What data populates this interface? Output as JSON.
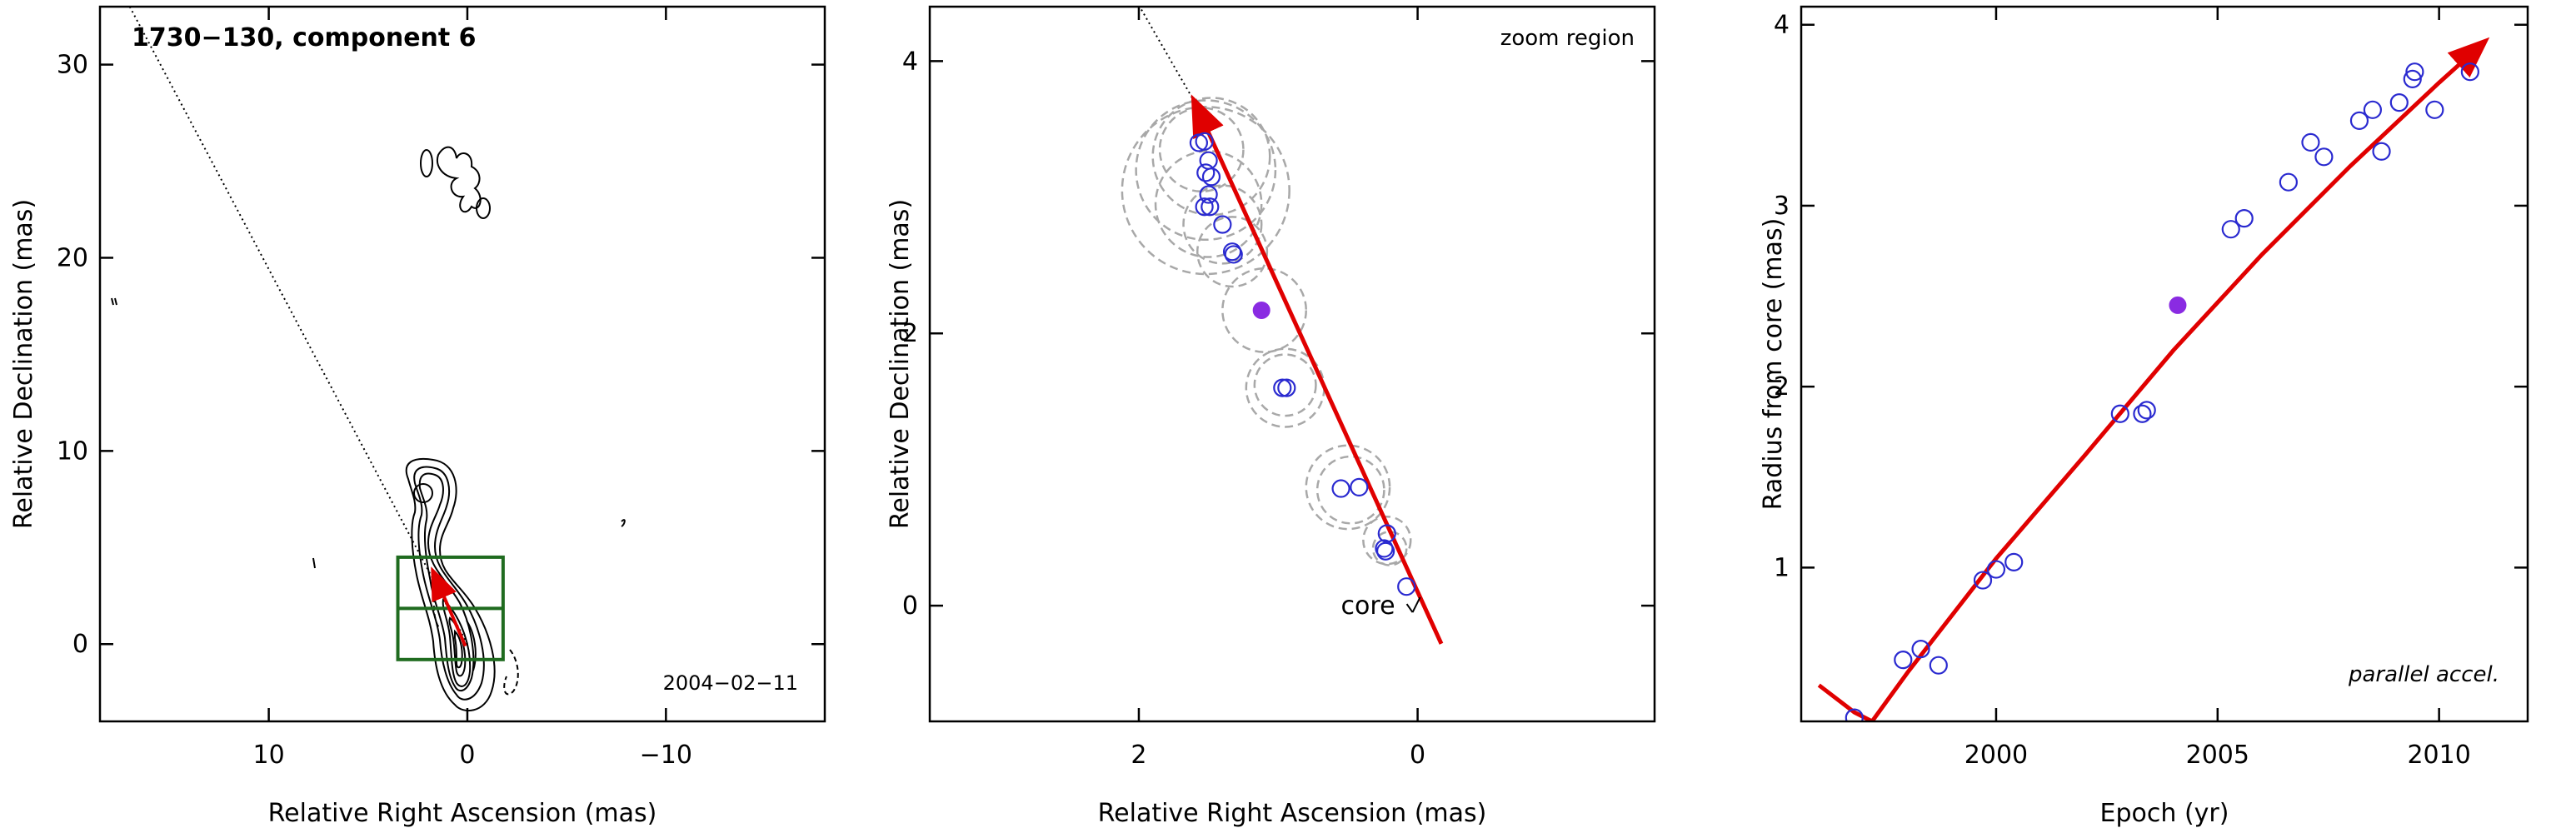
{
  "colors": {
    "axis": "#000000",
    "arrow": "#e00000",
    "points": "#2a2ad0",
    "filled": "#8a2be2",
    "box": "#1f6b1f",
    "circles": "#a8a8a8",
    "contours": "#000000"
  },
  "chart_data": [
    {
      "type": "contour",
      "title": "1730−130, component 6",
      "xlabel": "Relative Right Ascension (mas)",
      "ylabel": "Relative Declination (mas)",
      "xlim": [
        18.5,
        -18
      ],
      "ylim": [
        -4,
        33
      ],
      "xticks": [
        {
          "v": 10,
          "t": "10"
        },
        {
          "v": 0,
          "t": "0"
        },
        {
          "v": -10,
          "t": "−10"
        }
      ],
      "yticks": [
        {
          "v": 0,
          "t": "0"
        },
        {
          "v": 10,
          "t": "10"
        },
        {
          "v": 20,
          "t": "20"
        },
        {
          "v": 30,
          "t": "30"
        }
      ],
      "annotation": "2004−02−11",
      "dotted_line": [
        [
          17,
          33
        ],
        [
          0,
          0
        ]
      ],
      "zoom_box": {
        "x": [
          3.5,
          -1.8
        ],
        "y": [
          -0.8,
          4.5
        ]
      },
      "arrow": [
        [
          0.1,
          -0.1
        ],
        [
          1.7,
          3.7
        ]
      ]
    },
    {
      "type": "scatter",
      "xlabel": "Relative Right Ascension (mas)",
      "ylabel": "Relative Declination (mas)",
      "xlim": [
        3.5,
        -1.7
      ],
      "ylim": [
        -0.85,
        4.4
      ],
      "xticks": [
        {
          "v": 2,
          "t": "2"
        },
        {
          "v": 0,
          "t": "0"
        }
      ],
      "yticks": [
        {
          "v": 0,
          "t": "0"
        },
        {
          "v": 2,
          "t": "2"
        },
        {
          "v": 4,
          "t": "4"
        }
      ],
      "annotation": "zoom region",
      "core_label": "core",
      "arrow": [
        [
          -0.17,
          -0.28
        ],
        [
          1.6,
          3.7
        ]
      ],
      "dotted_line": [
        [
          1.6,
          3.7
        ],
        [
          2.05,
          4.5
        ]
      ],
      "points": [
        {
          "x": 1.57,
          "y": 3.4
        },
        {
          "x": 1.53,
          "y": 3.41
        },
        {
          "x": 1.5,
          "y": 3.27
        },
        {
          "x": 1.52,
          "y": 3.18
        },
        {
          "x": 1.48,
          "y": 3.15
        },
        {
          "x": 1.5,
          "y": 3.02
        },
        {
          "x": 1.53,
          "y": 2.93
        },
        {
          "x": 1.49,
          "y": 2.93
        },
        {
          "x": 1.4,
          "y": 2.8
        },
        {
          "x": 1.33,
          "y": 2.6
        },
        {
          "x": 1.32,
          "y": 2.58
        },
        {
          "x": 0.97,
          "y": 1.6
        },
        {
          "x": 0.94,
          "y": 1.6
        },
        {
          "x": 0.55,
          "y": 0.86
        },
        {
          "x": 0.42,
          "y": 0.87
        },
        {
          "x": 0.22,
          "y": 0.53
        },
        {
          "x": 0.24,
          "y": 0.42
        },
        {
          "x": 0.23,
          "y": 0.4
        },
        {
          "x": 0.08,
          "y": 0.14
        }
      ],
      "filled_point": {
        "x": 1.12,
        "y": 2.17
      },
      "circles": [
        {
          "x": 1.52,
          "y": 3.2,
          "r": 0.5
        },
        {
          "x": 1.52,
          "y": 3.05,
          "r": 0.6
        },
        {
          "x": 1.48,
          "y": 3.3,
          "r": 0.42
        },
        {
          "x": 1.55,
          "y": 3.35,
          "r": 0.3
        },
        {
          "x": 1.5,
          "y": 2.95,
          "r": 0.38
        },
        {
          "x": 1.4,
          "y": 2.8,
          "r": 0.28
        },
        {
          "x": 1.33,
          "y": 2.6,
          "r": 0.25
        },
        {
          "x": 1.1,
          "y": 2.17,
          "r": 0.3
        },
        {
          "x": 0.95,
          "y": 1.6,
          "r": 0.28
        },
        {
          "x": 0.95,
          "y": 1.62,
          "r": 0.22
        },
        {
          "x": 0.5,
          "y": 0.87,
          "r": 0.3
        },
        {
          "x": 0.48,
          "y": 0.85,
          "r": 0.24
        },
        {
          "x": 0.22,
          "y": 0.48,
          "r": 0.17
        },
        {
          "x": 0.2,
          "y": 0.42,
          "r": 0.12
        }
      ]
    },
    {
      "type": "scatter",
      "xlabel": "Epoch (yr)",
      "ylabel": "Radius from core (mas)",
      "xlim": [
        1995.6,
        2012.0
      ],
      "ylim": [
        0.15,
        4.1
      ],
      "xticks": [
        {
          "v": 2000,
          "t": "2000"
        },
        {
          "v": 2005,
          "t": "2005"
        },
        {
          "v": 2010,
          "t": "2010"
        }
      ],
      "yticks": [
        {
          "v": 1,
          "t": "1"
        },
        {
          "v": 2,
          "t": "2"
        },
        {
          "v": 3,
          "t": "3"
        },
        {
          "v": 4,
          "t": "4"
        }
      ],
      "annotation": "parallel accel.",
      "points": [
        {
          "x": 1996.8,
          "y": 0.17
        },
        {
          "x": 1997.9,
          "y": 0.49
        },
        {
          "x": 1998.3,
          "y": 0.55
        },
        {
          "x": 1998.7,
          "y": 0.46
        },
        {
          "x": 1999.7,
          "y": 0.93
        },
        {
          "x": 2000.0,
          "y": 0.99
        },
        {
          "x": 2000.4,
          "y": 1.03
        },
        {
          "x": 2002.8,
          "y": 1.85
        },
        {
          "x": 2003.3,
          "y": 1.85
        },
        {
          "x": 2003.4,
          "y": 1.87
        },
        {
          "x": 2005.3,
          "y": 2.87
        },
        {
          "x": 2005.6,
          "y": 2.93
        },
        {
          "x": 2006.6,
          "y": 3.13
        },
        {
          "x": 2007.1,
          "y": 3.35
        },
        {
          "x": 2007.4,
          "y": 3.27
        },
        {
          "x": 2008.2,
          "y": 3.47
        },
        {
          "x": 2008.5,
          "y": 3.53
        },
        {
          "x": 2008.7,
          "y": 3.3
        },
        {
          "x": 2009.1,
          "y": 3.57
        },
        {
          "x": 2009.4,
          "y": 3.7
        },
        {
          "x": 2009.45,
          "y": 3.74
        },
        {
          "x": 2009.9,
          "y": 3.53
        },
        {
          "x": 2010.7,
          "y": 3.74
        }
      ],
      "filled_point": {
        "x": 2004.1,
        "y": 2.45
      },
      "fit_curve": [
        {
          "x": 1996.0,
          "y": 0.35
        },
        {
          "x": 1996.8,
          "y": 0.2
        },
        {
          "x": 1997.2,
          "y": 0.15
        },
        {
          "x": 1998.0,
          "y": 0.42
        },
        {
          "x": 2000.0,
          "y": 1.05
        },
        {
          "x": 2002.0,
          "y": 1.62
        },
        {
          "x": 2004.0,
          "y": 2.2
        },
        {
          "x": 2006.0,
          "y": 2.73
        },
        {
          "x": 2008.0,
          "y": 3.22
        },
        {
          "x": 2010.0,
          "y": 3.68
        },
        {
          "x": 2011.0,
          "y": 3.9
        }
      ]
    }
  ]
}
